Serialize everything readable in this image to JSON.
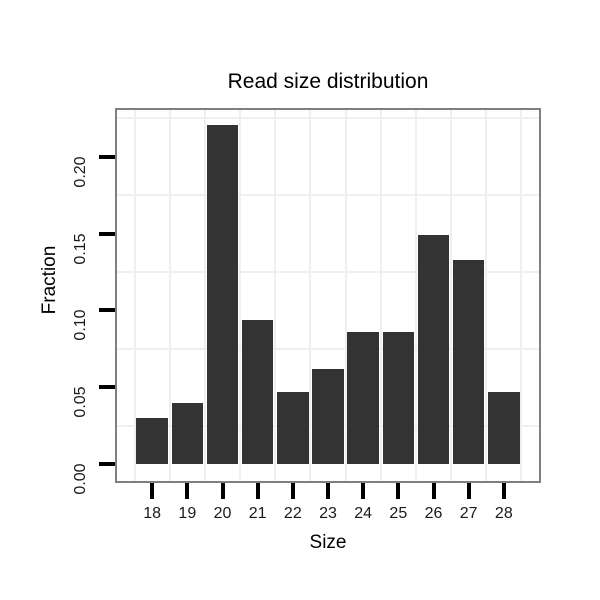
{
  "chart_data": {
    "type": "bar",
    "title": "Read size distribution",
    "xlabel": "Size",
    "ylabel": "Fraction",
    "categories": [
      18,
      19,
      20,
      21,
      22,
      23,
      24,
      25,
      26,
      27,
      28
    ],
    "values": [
      0.03,
      0.04,
      0.221,
      0.094,
      0.047,
      0.062,
      0.086,
      0.086,
      0.149,
      0.133,
      0.047
    ],
    "bar_width": 0.9,
    "xlim": [
      17.0,
      29.0
    ],
    "ylim": [
      -0.011,
      0.2305
    ],
    "x_tick_labels": [
      "18",
      "19",
      "20",
      "21",
      "22",
      "23",
      "24",
      "25",
      "26",
      "27",
      "28"
    ],
    "y_ticks": [
      0.0,
      0.05,
      0.1,
      0.15,
      0.2
    ],
    "y_tick_labels": [
      "0.00",
      "0.05",
      "0.10",
      "0.15",
      "0.20"
    ],
    "x_minor_gridlines": [
      17.5,
      18.5,
      19.5,
      20.5,
      21.5,
      22.5,
      23.5,
      24.5,
      25.5,
      26.5,
      27.5,
      28.5
    ],
    "y_minor_gridlines": [
      0.025,
      0.075,
      0.125,
      0.175,
      0.225
    ],
    "grid": "minor-only",
    "legend": "none",
    "colors": {
      "bar": "#333333",
      "panel_background": "#ffffff",
      "panel_border": "#7f7f7f",
      "grid": "#efefef",
      "tick": "#000000",
      "tick_label": "#1a1a1a",
      "title": "#000000"
    }
  }
}
